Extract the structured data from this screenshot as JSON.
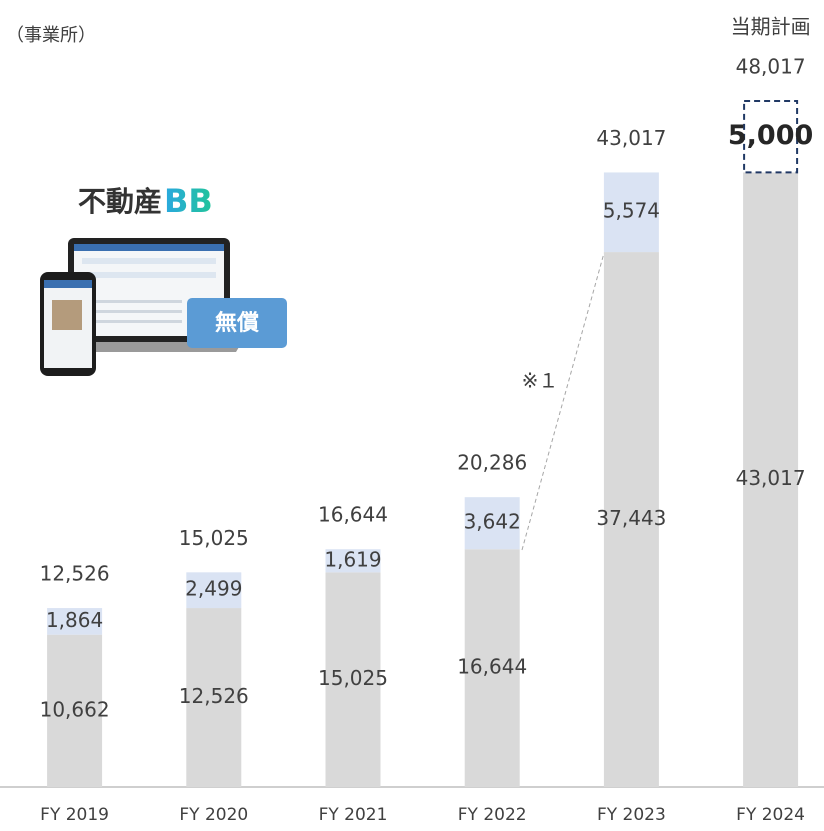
{
  "chart_data": {
    "type": "stacked_bar",
    "unit_label": "（事業所）",
    "categories": [
      "FY 2019",
      "FY 2020",
      "FY 2021",
      "FY 2022",
      "FY 2023",
      "FY 2024"
    ],
    "series": [
      {
        "color": "#d9d9d9",
        "values": [
          10662,
          12526,
          15025,
          16644,
          37443,
          43017
        ],
        "value_labels": [
          "10,662",
          "12,526",
          "15,025",
          "16,644",
          "37,443",
          "43,017"
        ]
      },
      {
        "color": "#dae3f3",
        "values": [
          1864,
          2499,
          1619,
          3642,
          5574,
          5000
        ],
        "value_labels": [
          "1,864",
          "2,499",
          "1,619",
          "3,642",
          "5,574",
          "5,000"
        ]
      }
    ],
    "totals": [
      12526,
      15025,
      16644,
      20286,
      43017,
      48017
    ],
    "total_labels": [
      "12,526",
      "15,025",
      "16,644",
      "20,286",
      "43,017",
      "48,017"
    ],
    "plan": {
      "label": "当期計画",
      "color": "#203864"
    },
    "annotations": {
      "note": "※１",
      "logo_text": "不動産",
      "logo_mark": "BB",
      "badge": "無償"
    }
  }
}
